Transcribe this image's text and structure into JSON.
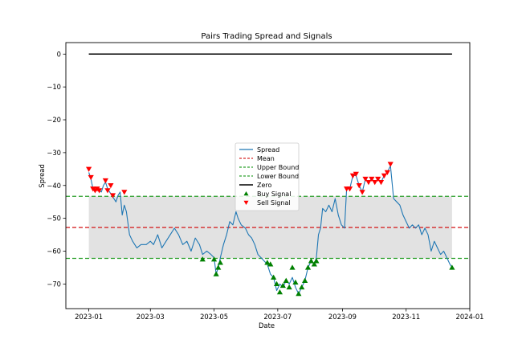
{
  "chart_data": {
    "type": "line",
    "title": "Pairs Trading Spread and Signals",
    "xlabel": "Date",
    "ylabel": "Spread",
    "xlim": [
      "2022-12-10",
      "2024-01-01"
    ],
    "ylim": [
      -77.5,
      3.5
    ],
    "x_ticks": [
      "2023-01",
      "2023-03",
      "2023-05",
      "2023-07",
      "2023-09",
      "2023-11",
      "2024-01"
    ],
    "y_ticks": [
      0,
      -10,
      -20,
      -30,
      -40,
      -50,
      -60,
      -70
    ],
    "mean": -52.8,
    "upper_bound": -43.3,
    "lower_bound": -62.2,
    "zero": 0,
    "band": {
      "from": -62.2,
      "to": -43.3,
      "x": [
        "2023-01-01",
        "2023-12-15"
      ],
      "color": "#d3d3d3"
    },
    "colors": {
      "spread": "#1f77b4",
      "mean": "#d62728",
      "bounds": "#2ca02c",
      "zero": "#000000",
      "buy": "#008000",
      "sell": "#ff0000"
    },
    "legend": {
      "position": "center",
      "entries": [
        "Spread",
        "Mean",
        "Upper Bound",
        "Lower Bound",
        "Zero",
        "Buy Signal",
        "Sell Signal"
      ]
    },
    "series": [
      {
        "name": "Spread",
        "points": [
          [
            "2023-01-01",
            -36
          ],
          [
            "2023-01-03",
            -38
          ],
          [
            "2023-01-05",
            -41
          ],
          [
            "2023-01-07",
            -41.5
          ],
          [
            "2023-01-09",
            -41
          ],
          [
            "2023-01-11",
            -41.5
          ],
          [
            "2023-01-13",
            -42
          ],
          [
            "2023-01-15",
            -40
          ],
          [
            "2023-01-17",
            -39
          ],
          [
            "2023-01-19",
            -41
          ],
          [
            "2023-01-21",
            -42
          ],
          [
            "2023-01-23",
            -43
          ],
          [
            "2023-01-25",
            -44
          ],
          [
            "2023-01-27",
            -45
          ],
          [
            "2023-01-29",
            -43
          ],
          [
            "2023-01-31",
            -42
          ],
          [
            "2023-02-02",
            -49
          ],
          [
            "2023-02-04",
            -46
          ],
          [
            "2023-02-06",
            -48
          ],
          [
            "2023-02-09",
            -55
          ],
          [
            "2023-02-12",
            -57
          ],
          [
            "2023-02-16",
            -59
          ],
          [
            "2023-02-20",
            -58
          ],
          [
            "2023-02-25",
            -58
          ],
          [
            "2023-03-01",
            -57
          ],
          [
            "2023-03-04",
            -58
          ],
          [
            "2023-03-08",
            -55
          ],
          [
            "2023-03-12",
            -59
          ],
          [
            "2023-03-16",
            -57
          ],
          [
            "2023-03-20",
            -55
          ],
          [
            "2023-03-24",
            -53
          ],
          [
            "2023-03-28",
            -55
          ],
          [
            "2023-04-01",
            -58
          ],
          [
            "2023-04-05",
            -57
          ],
          [
            "2023-04-09",
            -60
          ],
          [
            "2023-04-13",
            -56
          ],
          [
            "2023-04-17",
            -58
          ],
          [
            "2023-04-20",
            -61
          ],
          [
            "2023-04-24",
            -60
          ],
          [
            "2023-04-28",
            -61
          ],
          [
            "2023-05-01",
            -62
          ],
          [
            "2023-05-03",
            -67
          ],
          [
            "2023-05-05",
            -65
          ],
          [
            "2023-05-07",
            -62
          ],
          [
            "2023-05-10",
            -58
          ],
          [
            "2023-05-13",
            -55
          ],
          [
            "2023-05-16",
            -51
          ],
          [
            "2023-05-19",
            -52
          ],
          [
            "2023-05-22",
            -48
          ],
          [
            "2023-05-24",
            -50
          ],
          [
            "2023-05-27",
            -52
          ],
          [
            "2023-05-31",
            -53
          ],
          [
            "2023-06-03",
            -55
          ],
          [
            "2023-06-06",
            -56
          ],
          [
            "2023-06-09",
            -58
          ],
          [
            "2023-06-12",
            -61
          ],
          [
            "2023-06-15",
            -62
          ],
          [
            "2023-06-18",
            -63
          ],
          [
            "2023-06-21",
            -64
          ],
          [
            "2023-06-24",
            -67
          ],
          [
            "2023-06-27",
            -68
          ],
          [
            "2023-06-30",
            -72
          ],
          [
            "2023-07-03",
            -70
          ],
          [
            "2023-07-06",
            -71
          ],
          [
            "2023-07-09",
            -69
          ],
          [
            "2023-07-12",
            -70
          ],
          [
            "2023-07-15",
            -68
          ],
          [
            "2023-07-18",
            -71
          ],
          [
            "2023-07-21",
            -73
          ],
          [
            "2023-07-24",
            -71
          ],
          [
            "2023-07-27",
            -69
          ],
          [
            "2023-07-30",
            -65
          ],
          [
            "2023-08-02",
            -63
          ],
          [
            "2023-08-05",
            -64
          ],
          [
            "2023-08-07",
            -62
          ],
          [
            "2023-08-09",
            -55
          ],
          [
            "2023-08-11",
            -53
          ],
          [
            "2023-08-13",
            -47
          ],
          [
            "2023-08-16",
            -48
          ],
          [
            "2023-08-19",
            -46
          ],
          [
            "2023-08-22",
            -48
          ],
          [
            "2023-08-25",
            -44
          ],
          [
            "2023-08-28",
            -49
          ],
          [
            "2023-08-31",
            -52
          ],
          [
            "2023-09-03",
            -53
          ],
          [
            "2023-09-05",
            -41
          ],
          [
            "2023-09-08",
            -41
          ],
          [
            "2023-09-11",
            -37
          ],
          [
            "2023-09-14",
            -37
          ],
          [
            "2023-09-17",
            -40
          ],
          [
            "2023-09-20",
            -42
          ],
          [
            "2023-09-23",
            -38
          ],
          [
            "2023-09-26",
            -39
          ],
          [
            "2023-09-29",
            -38
          ],
          [
            "2023-10-02",
            -39
          ],
          [
            "2023-10-05",
            -38
          ],
          [
            "2023-10-08",
            -39
          ],
          [
            "2023-10-11",
            -37
          ],
          [
            "2023-10-14",
            -36
          ],
          [
            "2023-10-17",
            -34
          ],
          [
            "2023-10-20",
            -44
          ],
          [
            "2023-10-23",
            -45
          ],
          [
            "2023-10-26",
            -46
          ],
          [
            "2023-10-29",
            -49
          ],
          [
            "2023-11-01",
            -51
          ],
          [
            "2023-11-04",
            -53
          ],
          [
            "2023-11-07",
            -52
          ],
          [
            "2023-11-10",
            -53
          ],
          [
            "2023-11-13",
            -52
          ],
          [
            "2023-11-16",
            -55
          ],
          [
            "2023-11-19",
            -53
          ],
          [
            "2023-11-22",
            -55
          ],
          [
            "2023-11-25",
            -60
          ],
          [
            "2023-11-28",
            -57
          ],
          [
            "2023-12-01",
            -59
          ],
          [
            "2023-12-04",
            -61
          ],
          [
            "2023-12-07",
            -60
          ],
          [
            "2023-12-10",
            -62
          ],
          [
            "2023-12-13",
            -64
          ],
          [
            "2023-12-15",
            -65
          ]
        ]
      },
      {
        "name": "Buy Signal",
        "points": [
          [
            "2023-04-20",
            -62.5
          ],
          [
            "2023-05-01",
            -62.5
          ],
          [
            "2023-05-03",
            -67
          ],
          [
            "2023-05-05",
            -65
          ],
          [
            "2023-05-07",
            -63.5
          ],
          [
            "2023-06-21",
            -63.5
          ],
          [
            "2023-06-24",
            -64
          ],
          [
            "2023-06-27",
            -68
          ],
          [
            "2023-06-30",
            -70
          ],
          [
            "2023-07-03",
            -72.5
          ],
          [
            "2023-07-06",
            -70.5
          ],
          [
            "2023-07-09",
            -69
          ],
          [
            "2023-07-12",
            -71
          ],
          [
            "2023-07-15",
            -65
          ],
          [
            "2023-07-18",
            -69.5
          ],
          [
            "2023-07-21",
            -73
          ],
          [
            "2023-07-24",
            -71
          ],
          [
            "2023-07-27",
            -69
          ],
          [
            "2023-07-30",
            -65
          ],
          [
            "2023-08-02",
            -63
          ],
          [
            "2023-08-05",
            -64
          ],
          [
            "2023-08-07",
            -63
          ],
          [
            "2023-12-15",
            -65
          ]
        ]
      },
      {
        "name": "Sell Signal",
        "points": [
          [
            "2023-01-01",
            -35
          ],
          [
            "2023-01-03",
            -37.5
          ],
          [
            "2023-01-05",
            -41
          ],
          [
            "2023-01-07",
            -41.5
          ],
          [
            "2023-01-09",
            -41
          ],
          [
            "2023-01-11",
            -41.5
          ],
          [
            "2023-01-17",
            -38.5
          ],
          [
            "2023-01-19",
            -41.5
          ],
          [
            "2023-01-22",
            -40
          ],
          [
            "2023-01-24",
            -43
          ],
          [
            "2023-02-04",
            -42
          ],
          [
            "2023-09-05",
            -41
          ],
          [
            "2023-09-08",
            -41
          ],
          [
            "2023-09-11",
            -37
          ],
          [
            "2023-09-14",
            -36.5
          ],
          [
            "2023-09-17",
            -40
          ],
          [
            "2023-09-20",
            -42
          ],
          [
            "2023-09-23",
            -38
          ],
          [
            "2023-09-26",
            -39
          ],
          [
            "2023-09-29",
            -38
          ],
          [
            "2023-10-02",
            -39
          ],
          [
            "2023-10-05",
            -38
          ],
          [
            "2023-10-08",
            -39
          ],
          [
            "2023-10-11",
            -37
          ],
          [
            "2023-10-14",
            -36
          ],
          [
            "2023-10-17",
            -33.5
          ]
        ]
      }
    ]
  }
}
